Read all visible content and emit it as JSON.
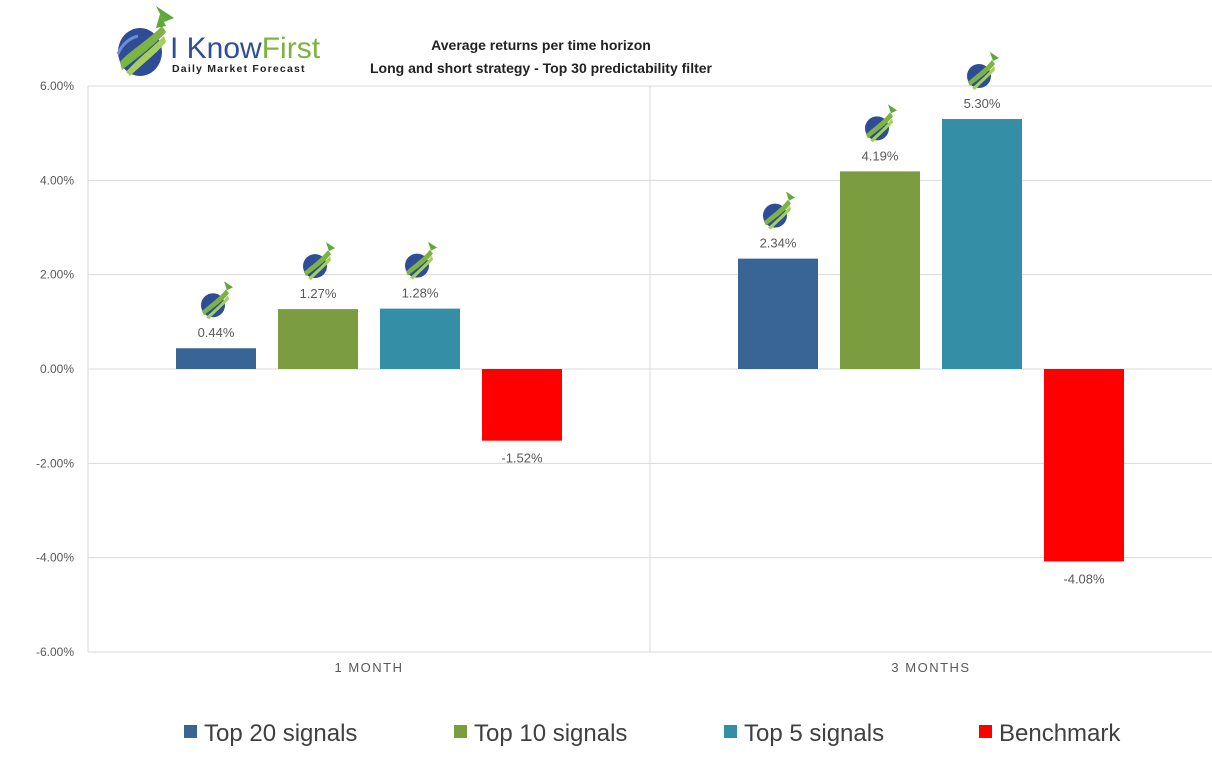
{
  "logo": {
    "brand_part1": "I Know",
    "brand_part2": "First",
    "tagline": "Daily Market Forecast"
  },
  "chart_data": {
    "type": "bar",
    "title_lines": [
      "Average returns per time horizon",
      "Long and short strategy - Top 30 predictability filter"
    ],
    "categories": [
      "1 MONTH",
      "3 MONTHS"
    ],
    "series": [
      {
        "name": "Top 20 signals",
        "color": "#386496",
        "values": [
          0.44,
          2.34
        ],
        "labels": [
          "0.44%",
          "2.34%"
        ],
        "icon": "iknowfirst-logo-icon"
      },
      {
        "name": "Top 10 signals",
        "color": "#7b9d3f",
        "values": [
          1.27,
          4.19
        ],
        "labels": [
          "1.27%",
          "4.19%"
        ],
        "icon": "iknowfirst-logo-icon"
      },
      {
        "name": "Top 5 signals",
        "color": "#338ea6",
        "values": [
          1.28,
          5.3
        ],
        "labels": [
          "1.28%",
          "5.30%"
        ],
        "icon": "iknowfirst-logo-icon"
      },
      {
        "name": "Benchmark",
        "color": "#ff0000",
        "values": [
          -1.52,
          -4.08
        ],
        "labels": [
          "-1.52%",
          "-4.08%"
        ]
      }
    ],
    "y_ticks": [
      "6.00%",
      "4.00%",
      "2.00%",
      "0.00%",
      "-2.00%",
      "-4.00%",
      "-6.00%"
    ],
    "ylim": [
      -6,
      6
    ],
    "grid": true,
    "legend_position": "bottom"
  }
}
